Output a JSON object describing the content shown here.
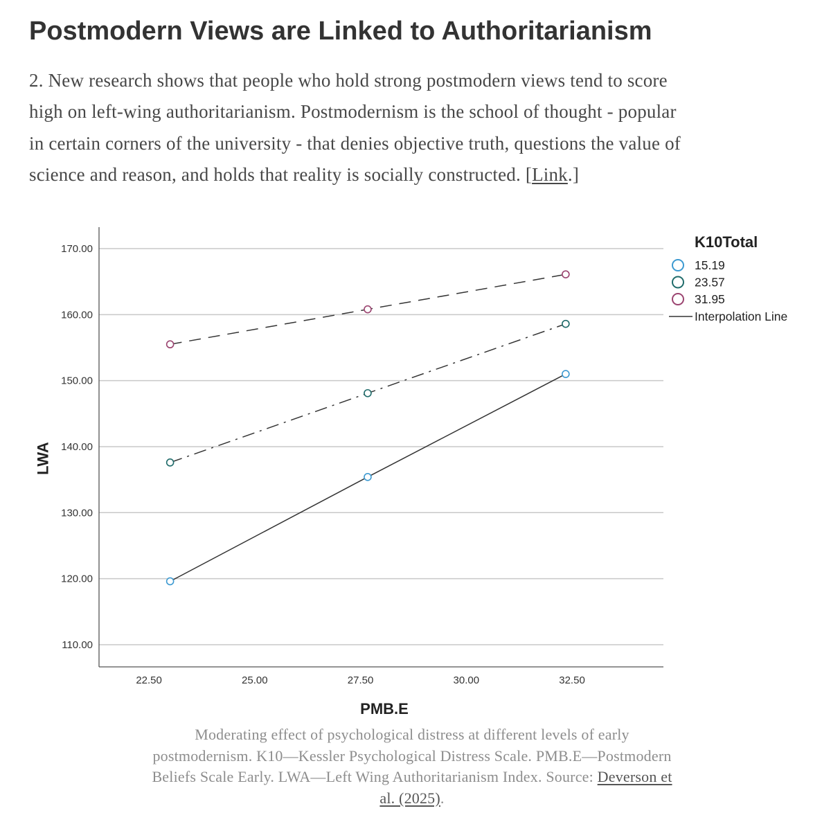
{
  "article": {
    "heading": "Postmodern Views are Linked to Authoritarianism",
    "paragraph": {
      "lines": [
        "2. New research shows that people who hold strong postmodern views tend to score",
        "high on left-wing authoritarianism. Postmodernism is the school of thought - popular",
        "in certain corners of the university - that denies objective truth, questions the value of"
      ],
      "last_line_before_link": "science and reason, and holds that reality is socially constructed. [",
      "link_text": "Link",
      "after_link": ".]"
    },
    "caption": {
      "lines": [
        "Moderating effect of psychological distress at different levels of early",
        "postmodernism. K10—Kessler Psychological Distress Scale. PMB.E—Postmodern"
      ],
      "line3_before_link": "Beliefs Scale Early. LWA—Left Wing Authoritarianism Index. Source: ",
      "source_link_part1": "Deverson et",
      "source_link_part2": "al. (2025)",
      "after_link": "."
    }
  },
  "chart_data": {
    "type": "line",
    "xlabel": "PMB.E",
    "ylabel": "LWA",
    "xlim": [
      21.32,
      34.66
    ],
    "ylim": [
      106.64,
      173.25
    ],
    "x_tick_values": [
      22.5,
      25.0,
      27.5,
      30.0,
      32.5
    ],
    "x_ticks": [
      "22.50",
      "25.00",
      "27.50",
      "30.00",
      "32.50"
    ],
    "y_tick_values": [
      110,
      120,
      130,
      140,
      150,
      160,
      170
    ],
    "y_ticks": [
      "110.00",
      "120.00",
      "130.00",
      "140.00",
      "150.00",
      "160.00",
      "170.00"
    ],
    "grid": "horizontal",
    "line_color": "#333333",
    "legend": {
      "title": "K10Total",
      "position": "right",
      "line_label": "Interpolation Line"
    },
    "x": [
      23.0,
      27.67,
      32.35
    ],
    "series": [
      {
        "name": "15.19",
        "color": "#3d9ad1",
        "line_style": "solid",
        "y": [
          119.6,
          135.4,
          151.0
        ]
      },
      {
        "name": "23.57",
        "color": "#1f6b6a",
        "line_style": "dash-dot",
        "y": [
          137.6,
          148.1,
          158.6
        ]
      },
      {
        "name": "31.95",
        "color": "#9b4470",
        "line_style": "dashed",
        "y": [
          155.5,
          160.8,
          166.1
        ]
      }
    ]
  }
}
